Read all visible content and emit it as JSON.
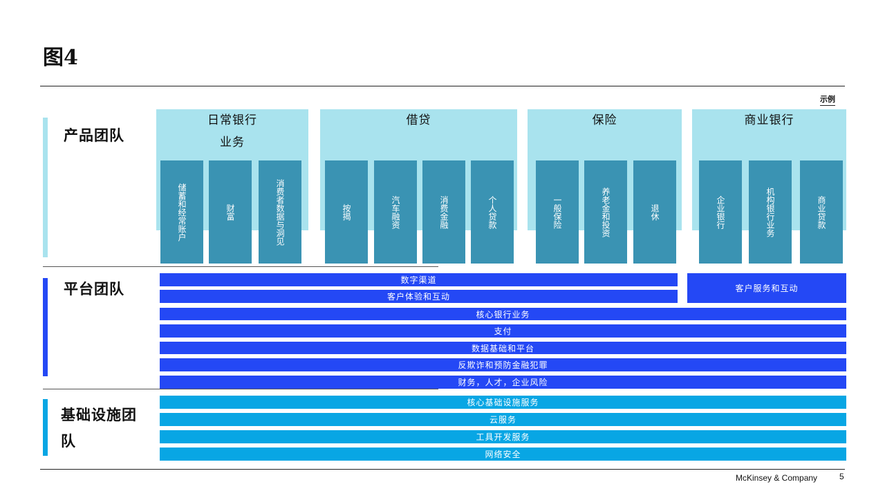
{
  "title": "图4",
  "legend": "示例",
  "teams": {
    "product": "产品团队",
    "platform": "平台团队",
    "infra": "基础设施团队"
  },
  "product_groups": [
    {
      "title": "日常银行业务",
      "columns": [
        "储蓄和经常账户",
        "财富",
        "消费者数据与洞见"
      ]
    },
    {
      "title": "借贷",
      "columns": [
        "按揭",
        "汽车融资",
        "消费金融",
        "个人贷款"
      ]
    },
    {
      "title": "保险",
      "columns": [
        "一般保险",
        "养老金和投资",
        "退休"
      ]
    },
    {
      "title": "商业银行",
      "columns": [
        "企业银行",
        "机构银行业务",
        "商业贷款"
      ]
    }
  ],
  "platform_bars": [
    "数字渠道",
    "客户体验和互动",
    "核心银行业务",
    "支付",
    "数据基础和平台",
    "反欺诈和预防金融犯罪",
    "财务，人才，企业风险"
  ],
  "platform_side": "客户服务和互动",
  "infra_bars": [
    "核心基础设施服务",
    "云服务",
    "工具开发服务",
    "网络安全"
  ],
  "colors": {
    "product_light": "#a9e3ee",
    "product_dark": "#3a93b3",
    "platform": "#2448f5",
    "infra": "#08a6e4",
    "product_sidebar": "#a9e3ee"
  },
  "footer": {
    "brand": "McKinsey & Company",
    "page": "5"
  }
}
